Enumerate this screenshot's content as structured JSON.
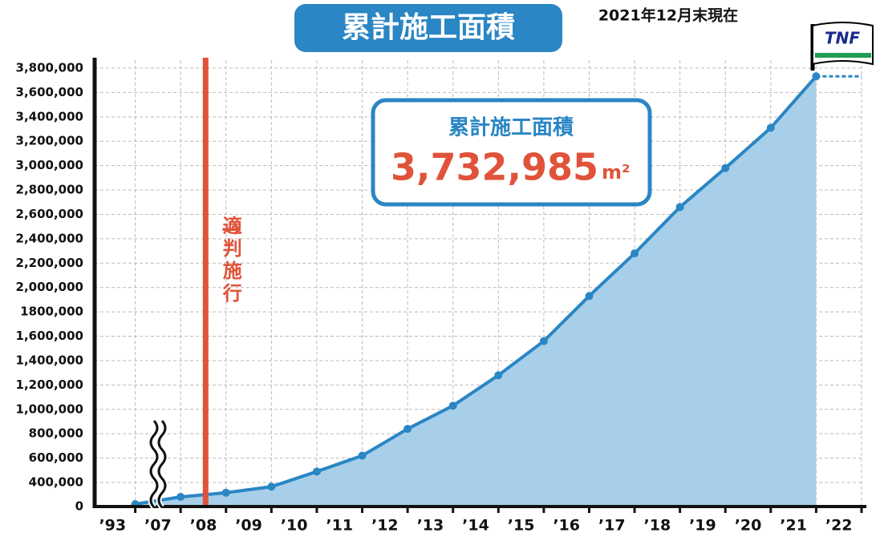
{
  "chart_data": {
    "type": "area",
    "title": "累計施工面積",
    "subtitle": "2021年12月末現在",
    "categories": [
      "’93",
      "’07",
      "’08",
      "’09",
      "’10",
      "’11",
      "’12",
      "’13",
      "’14",
      "’15",
      "’16",
      "’17",
      "’18",
      "’19",
      "’20",
      "’21",
      "’22"
    ],
    "series": [
      {
        "name": "累計施工面積",
        "color": "#2a86c4",
        "fill": "#a8cfe9",
        "values": [
          40000,
          160000,
          230000,
          330000,
          490000,
          620000,
          840000,
          1030000,
          1280000,
          1560000,
          1930000,
          2280000,
          2660000,
          2980000,
          3310000,
          3732985,
          null
        ]
      }
    ],
    "ylim": [
      0,
      3800000
    ],
    "yticks": [
      0,
      {
        "value": 400000,
        "label": "400,000"
      },
      {
        "value": 600000,
        "label": "600,000"
      },
      {
        "value": 800000,
        "label": "800,000"
      },
      {
        "value": 1000000,
        "label": "1,000,000"
      },
      {
        "value": 1200000,
        "label": "1,200,000"
      },
      {
        "value": 1400000,
        "label": "1,400,000"
      },
      {
        "value": 1600000,
        "label": "1,600,000"
      },
      {
        "value": 1800000,
        "label": "1800,000"
      },
      {
        "value": 2000000,
        "label": "2,000,000"
      },
      {
        "value": 2200000,
        "label": "2,200,000"
      },
      {
        "value": 2400000,
        "label": "2,400,000"
      },
      {
        "value": 2600000,
        "label": "2,600,000"
      },
      {
        "value": 2800000,
        "label": "2,800,000"
      },
      {
        "value": 3000000,
        "label": "3,000,000"
      },
      {
        "value": 3200000,
        "label": "3,200,000"
      },
      {
        "value": 3400000,
        "label": "3,400,000"
      },
      {
        "value": 3600000,
        "label": "3,600,000"
      },
      {
        "value": 3800000,
        "label": "3,800,000"
      }
    ],
    "grid": true,
    "marker": {
      "category": 2,
      "arrow": "→",
      "label": "適判施行",
      "color": "#e0533a"
    },
    "callout": {
      "title": "累計施工面積",
      "value": "3,732,985",
      "unit": "m²"
    },
    "logo": "TNF"
  }
}
